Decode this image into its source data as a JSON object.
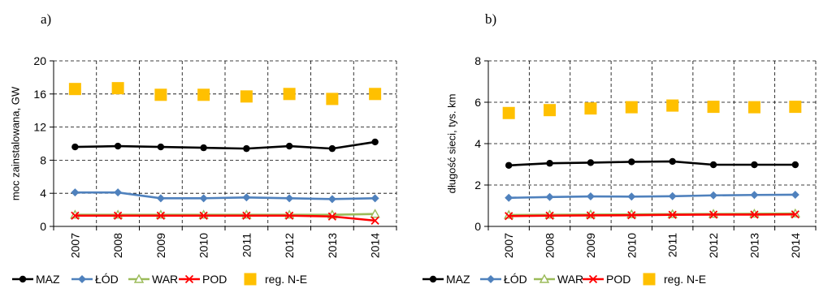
{
  "panels": [
    {
      "letter": "a)"
    },
    {
      "letter": "b)"
    }
  ],
  "chart_data": [
    {
      "type": "line",
      "panel": "a)",
      "title": "",
      "xlabel": "",
      "ylabel": "moc zainstalowana, GW",
      "categories": [
        "2007",
        "2008",
        "2009",
        "2010",
        "2011",
        "2012",
        "2013",
        "2014"
      ],
      "ylim": [
        0,
        20
      ],
      "yticks": [
        0,
        4,
        8,
        12,
        16,
        20
      ],
      "grid": true,
      "legend_position": "bottom",
      "series": [
        {
          "name": "MAZ",
          "marker": "circle",
          "color": "#000000",
          "line": true,
          "values": [
            9.6,
            9.7,
            9.6,
            9.5,
            9.4,
            9.7,
            9.4,
            10.2
          ]
        },
        {
          "name": "ŁÓD",
          "marker": "diamond",
          "color": "#4F81BD",
          "line": true,
          "values": [
            4.1,
            4.1,
            3.4,
            3.4,
            3.5,
            3.4,
            3.3,
            3.4
          ]
        },
        {
          "name": "WAR",
          "marker": "triangle",
          "color": "#9BBB59",
          "line": true,
          "values": [
            1.4,
            1.4,
            1.4,
            1.4,
            1.4,
            1.4,
            1.4,
            1.5
          ]
        },
        {
          "name": "POD",
          "marker": "x",
          "color": "#FF0000",
          "line": true,
          "values": [
            1.3,
            1.3,
            1.3,
            1.3,
            1.3,
            1.3,
            1.2,
            0.7
          ]
        },
        {
          "name": "reg. N-E",
          "marker": "square",
          "color": "#FFC000",
          "line": false,
          "values": [
            16.6,
            16.7,
            15.9,
            15.9,
            15.7,
            16.0,
            15.4,
            16.0
          ]
        }
      ]
    },
    {
      "type": "line",
      "panel": "b)",
      "title": "",
      "xlabel": "",
      "ylabel": "długość sieci, tys. km",
      "categories": [
        "2007",
        "2008",
        "2009",
        "2010",
        "2011",
        "2012",
        "2013",
        "2014"
      ],
      "ylim": [
        0,
        8
      ],
      "yticks": [
        0,
        2,
        4,
        6,
        8
      ],
      "grid": true,
      "legend_position": "bottom",
      "series": [
        {
          "name": "MAZ",
          "marker": "circle",
          "color": "#000000",
          "line": true,
          "values": [
            2.95,
            3.05,
            3.08,
            3.12,
            3.14,
            2.98,
            2.98,
            2.98
          ]
        },
        {
          "name": "ŁÓD",
          "marker": "diamond",
          "color": "#4F81BD",
          "line": true,
          "values": [
            1.38,
            1.42,
            1.45,
            1.44,
            1.46,
            1.5,
            1.52,
            1.53
          ]
        },
        {
          "name": "WAR",
          "marker": "triangle",
          "color": "#9BBB59",
          "line": true,
          "values": [
            0.55,
            0.56,
            0.57,
            0.58,
            0.59,
            0.6,
            0.61,
            0.62
          ]
        },
        {
          "name": "POD",
          "marker": "x",
          "color": "#FF0000",
          "line": true,
          "values": [
            0.5,
            0.52,
            0.53,
            0.54,
            0.56,
            0.57,
            0.57,
            0.58
          ]
        },
        {
          "name": "reg. N-E",
          "marker": "square",
          "color": "#FFC000",
          "line": false,
          "values": [
            5.48,
            5.62,
            5.7,
            5.76,
            5.84,
            5.78,
            5.76,
            5.78
          ]
        }
      ]
    }
  ]
}
